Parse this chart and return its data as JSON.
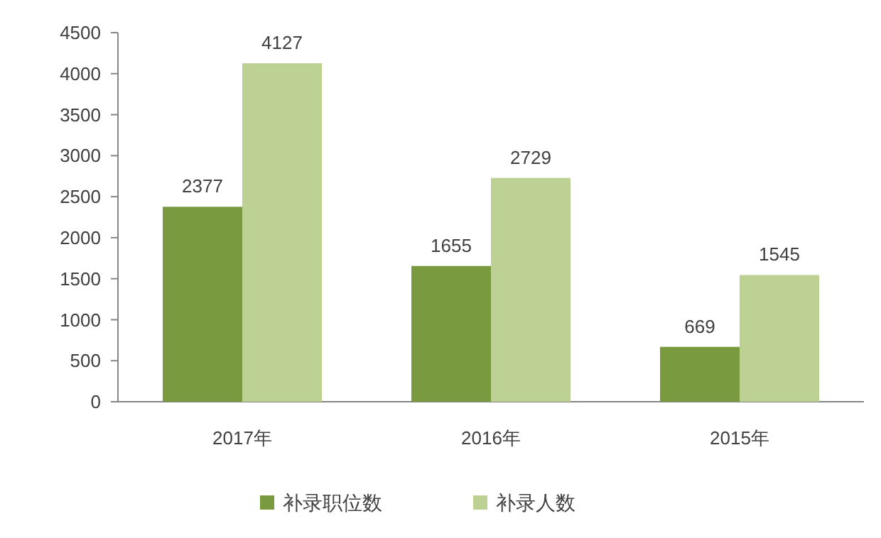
{
  "chart_data": {
    "type": "bar",
    "categories": [
      "2017年",
      "2016年",
      "2015年"
    ],
    "series": [
      {
        "name": "补录职位数",
        "color": "#7a9a3f",
        "values": [
          2377,
          1655,
          669
        ]
      },
      {
        "name": "补录人数",
        "color": "#bcd193",
        "values": [
          4127,
          2729,
          1545
        ]
      }
    ],
    "ylim": [
      0,
      4500
    ],
    "yticks": [
      0,
      500,
      1000,
      1500,
      2000,
      2500,
      3000,
      3500,
      4000,
      4500
    ],
    "grid": false,
    "legend": "bottom",
    "data_labels": true
  }
}
